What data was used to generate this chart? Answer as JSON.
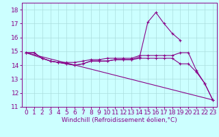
{
  "x": [
    0,
    1,
    2,
    3,
    4,
    5,
    6,
    7,
    8,
    9,
    10,
    11,
    12,
    13,
    14,
    15,
    16,
    17,
    18,
    19,
    20,
    21,
    22,
    23
  ],
  "line1_y": [
    14.9,
    14.9,
    14.5,
    14.3,
    14.2,
    14.1,
    14.0,
    14.1,
    14.3,
    14.3,
    14.3,
    14.4,
    14.4,
    14.4,
    14.6,
    17.1,
    17.8,
    17.0,
    16.3,
    15.8,
    null,
    null,
    null,
    null
  ],
  "line2_y": [
    14.9,
    14.9,
    14.5,
    14.3,
    14.2,
    14.2,
    14.2,
    14.3,
    14.4,
    14.4,
    14.5,
    14.5,
    14.5,
    14.5,
    14.7,
    14.7,
    14.7,
    14.7,
    14.7,
    14.9,
    14.9,
    13.6,
    12.7,
    11.5
  ],
  "line3_y": [
    14.9,
    14.5,
    14.3,
    14.2,
    14.1,
    14.0,
    14.1,
    14.3,
    14.3,
    14.3,
    14.4,
    14.4,
    14.4,
    14.5,
    14.5,
    14.5,
    14.5,
    14.5,
    14.1,
    14.1,
    13.5,
    12.7,
    11.5
  ],
  "line3_x": [
    0,
    2,
    3,
    4,
    5,
    6,
    7,
    8,
    9,
    10,
    11,
    12,
    13,
    14,
    15,
    16,
    17,
    18,
    19,
    20,
    21,
    22,
    23
  ],
  "line4_x": [
    0,
    23
  ],
  "line4_y": [
    14.9,
    11.5
  ],
  "ylim": [
    11,
    18.5
  ],
  "xlim": [
    -0.5,
    23.5
  ],
  "yticks": [
    11,
    12,
    13,
    14,
    15,
    16,
    17,
    18
  ],
  "xticks": [
    0,
    1,
    2,
    3,
    4,
    5,
    6,
    7,
    8,
    9,
    10,
    11,
    12,
    13,
    14,
    15,
    16,
    17,
    18,
    19,
    20,
    21,
    22,
    23
  ],
  "xlabel": "Windchill (Refroidissement éolien,°C)",
  "color": "#880088",
  "bg_color": "#ccffff",
  "grid_color": "#aadddd",
  "marker": "+",
  "linewidth": 0.8,
  "fontsize": 6.5
}
